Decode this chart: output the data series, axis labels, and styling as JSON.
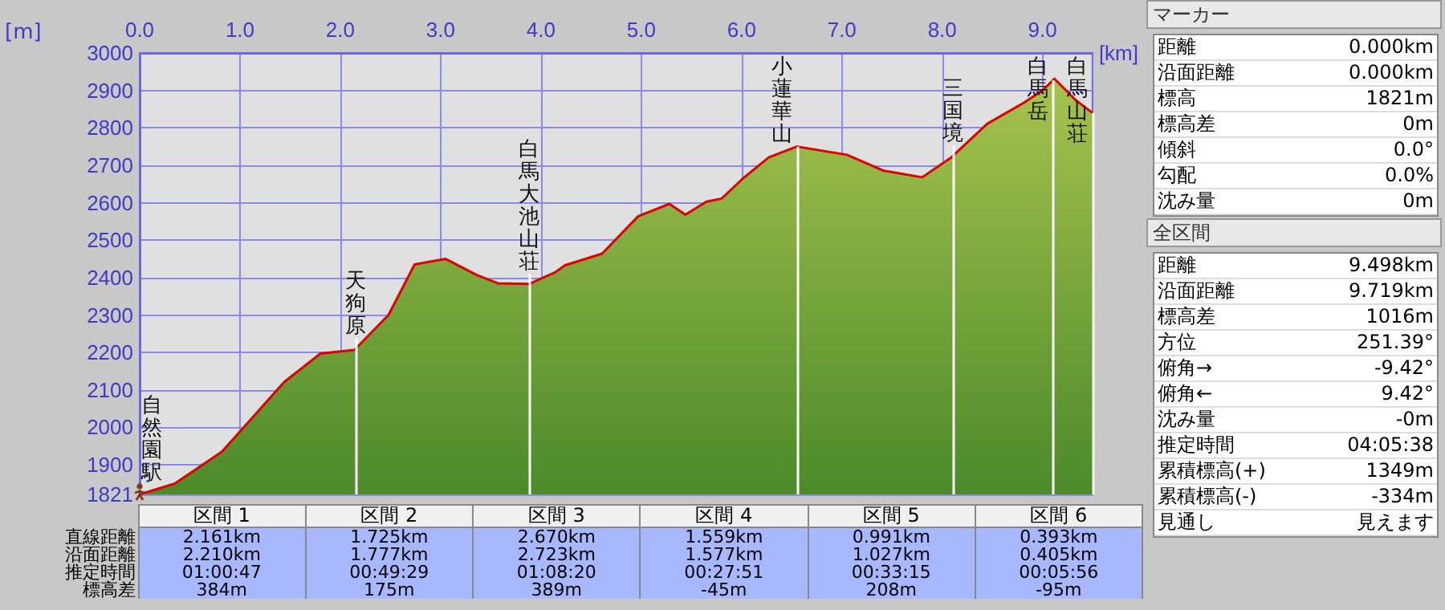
{
  "chart_data": [
    {
      "type": "area",
      "xlabel": "[km]",
      "ylabel": "[m]",
      "x": [
        0,
        0.35,
        0.56,
        0.82,
        1.13,
        1.44,
        1.8,
        2.14,
        2.48,
        2.74,
        3.05,
        3.36,
        3.57,
        3.88,
        4.14,
        4.24,
        4.61,
        4.97,
        5.28,
        5.44,
        5.65,
        5.8,
        6.01,
        6.27,
        6.55,
        7.05,
        7.41,
        7.8,
        8.09,
        8.45,
        8.82,
        9.0,
        9.12,
        9.33,
        9.498
      ],
      "series": [
        {
          "color": "#e00000",
          "values": [
            1821,
            1850,
            1888,
            1935,
            2028,
            2121,
            2197,
            2207,
            2300,
            2435,
            2450,
            2407,
            2385,
            2383,
            2414,
            2433,
            2464,
            2564,
            2597,
            2568,
            2603,
            2611,
            2664,
            2721,
            2750,
            2728,
            2686,
            2668,
            2721,
            2811,
            2868,
            2900,
            2931,
            2874,
            2840
          ]
        }
      ],
      "xlim": [
        0,
        9.498
      ],
      "xticks": [
        {
          "value": 0,
          "label": "0.0"
        },
        {
          "value": 1,
          "label": "1.0"
        },
        {
          "value": 2,
          "label": "2.0"
        },
        {
          "value": 3,
          "label": "3.0"
        },
        {
          "value": 4,
          "label": "4.0"
        },
        {
          "value": 5,
          "label": "5.0"
        },
        {
          "value": 6,
          "label": "6.0"
        },
        {
          "value": 7,
          "label": "7.0"
        },
        {
          "value": 8,
          "label": "8.0"
        },
        {
          "value": 9,
          "label": "9.0"
        }
      ],
      "ylim": [
        1821,
        3000
      ],
      "yticks": [
        1821,
        1900,
        2000,
        2100,
        2200,
        2300,
        2400,
        2500,
        2600,
        2700,
        2800,
        2900,
        3000
      ],
      "grid": true,
      "ref_lines": [
        {
          "axis": "x",
          "value": 0,
          "label": "自然園駅",
          "color": "#ffffff"
        },
        {
          "axis": "x",
          "value": 2.161,
          "label": "天狗原",
          "color": "#ffffff"
        },
        {
          "axis": "x",
          "value": 3.886,
          "label": "白馬大池山荘",
          "color": "#ffffff"
        },
        {
          "axis": "x",
          "value": 6.556,
          "label": "小蓮華山",
          "color": "#ffffff"
        },
        {
          "axis": "x",
          "value": 8.115,
          "label": "三国境",
          "color": "#ffffff"
        },
        {
          "axis": "x",
          "value": 9.106,
          "label": "白馬岳",
          "color": "#ffffff"
        },
        {
          "axis": "x",
          "value": 9.498,
          "label": "白馬山荘",
          "color": "#ffffff"
        }
      ]
    },
    {
      "type": "other",
      "categories": [
        "区間 1",
        "区間 2",
        "区間 3",
        "区間 4",
        "区間 5",
        "区間 6"
      ],
      "y_categories": [
        "直線距離",
        "沿面距離",
        "推定時間",
        "標高差"
      ],
      "cell_labels": [
        [
          "2.161km",
          "1.725km",
          "2.670km",
          "1.559km",
          "0.991km",
          "0.393km"
        ],
        [
          "2.210km",
          "1.777km",
          "2.723km",
          "1.577km",
          "1.027km",
          "0.405km"
        ],
        [
          "01:00:47",
          "00:49:29",
          "01:08:20",
          "00:27:51",
          "00:33:15",
          "00:05:56"
        ],
        [
          "384m",
          "175m",
          "389m",
          "-45m",
          "208m",
          "-95m"
        ]
      ]
    },
    {
      "type": "other",
      "title": "マーカー",
      "categories": [
        "距離",
        "沿面距離",
        "標高",
        "標高差",
        "傾斜",
        "勾配",
        "沈み量"
      ],
      "value_labels": [
        "0.000km",
        "0.000km",
        "1821m",
        "0m",
        "0.0°",
        "0.0%",
        "0m"
      ]
    },
    {
      "type": "other",
      "title": "全区間",
      "categories": [
        "距離",
        "沿面距離",
        "標高差",
        "方位",
        "俯角→",
        "俯角←",
        "沈み量",
        "推定時間",
        "累積標高(+)",
        "累積標高(-)",
        "見通し"
      ],
      "value_labels": [
        "9.498km",
        "9.719km",
        "1016m",
        "251.39°",
        "-9.42°",
        "9.42°",
        "-0m",
        "04:05:38",
        "1349m",
        "-334m",
        "見えます"
      ]
    }
  ]
}
